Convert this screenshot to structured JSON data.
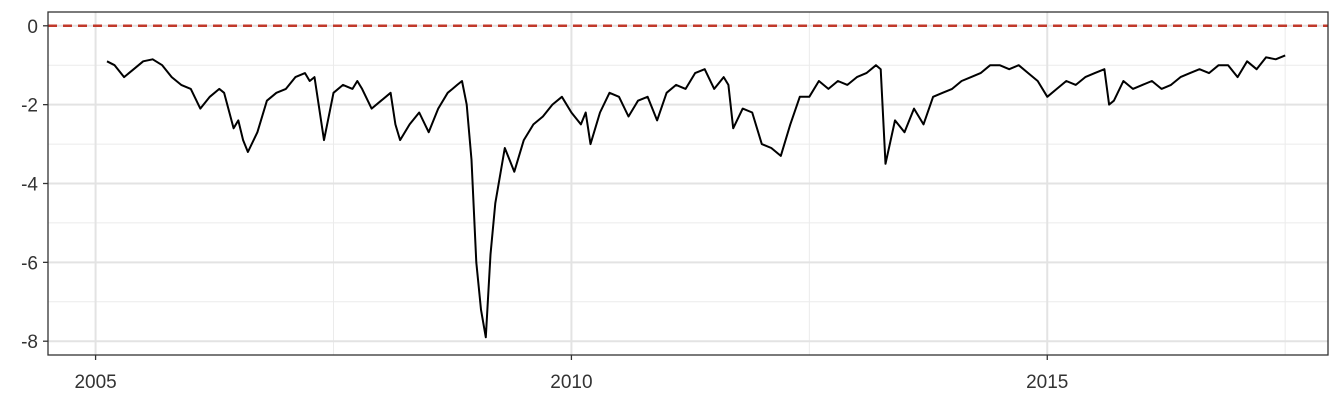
{
  "chart_data": {
    "type": "line",
    "title": "",
    "xlabel": "",
    "ylabel": "",
    "xlim": [
      2004.5,
      2017.95
    ],
    "ylim": [
      -8.35,
      0.35
    ],
    "x_ticks": [
      2005,
      2010,
      2015
    ],
    "x_tick_labels": [
      "2005",
      "2010",
      "2015"
    ],
    "y_ticks": [
      0,
      -2,
      -4,
      -6,
      -8
    ],
    "y_tick_labels": [
      "0",
      "-2",
      "-4",
      "-6",
      "-8"
    ],
    "reference_line": {
      "y": 0,
      "style": "dashed",
      "color": "#C0392B"
    },
    "grid": true,
    "legend": "none",
    "series_color": "#000000",
    "series": [
      {
        "x": [
          2005.12,
          2005.2,
          2005.3,
          2005.4,
          2005.5,
          2005.6,
          2005.7,
          2005.8,
          2005.9,
          2006.0,
          2006.1,
          2006.2,
          2006.3,
          2006.35,
          2006.45,
          2006.5,
          2006.55,
          2006.6,
          2006.7,
          2006.8,
          2006.9,
          2007.0,
          2007.1,
          2007.2,
          2007.25,
          2007.3,
          2007.4,
          2007.5,
          2007.6,
          2007.7,
          2007.75,
          2007.8,
          2007.9,
          2008.0,
          2008.1,
          2008.15,
          2008.2,
          2008.3,
          2008.4,
          2008.5,
          2008.6,
          2008.7,
          2008.75,
          2008.8,
          2008.85,
          2008.9,
          2008.95,
          2009.0,
          2009.05,
          2009.1,
          2009.15,
          2009.2,
          2009.3,
          2009.4,
          2009.5,
          2009.6,
          2009.7,
          2009.8,
          2009.9,
          2010.0,
          2010.1,
          2010.15,
          2010.2,
          2010.3,
          2010.4,
          2010.5,
          2010.6,
          2010.7,
          2010.8,
          2010.9,
          2011.0,
          2011.1,
          2011.2,
          2011.3,
          2011.4,
          2011.5,
          2011.6,
          2011.65,
          2011.7,
          2011.8,
          2011.9,
          2012.0,
          2012.1,
          2012.2,
          2012.3,
          2012.4,
          2012.5,
          2012.6,
          2012.7,
          2012.8,
          2012.9,
          2013.0,
          2013.1,
          2013.2,
          2013.25,
          2013.3,
          2013.4,
          2013.5,
          2013.6,
          2013.7,
          2013.8,
          2013.9,
          2014.0,
          2014.1,
          2014.2,
          2014.3,
          2014.4,
          2014.5,
          2014.6,
          2014.7,
          2014.8,
          2014.9,
          2015.0,
          2015.1,
          2015.2,
          2015.3,
          2015.4,
          2015.5,
          2015.6,
          2015.65,
          2015.7,
          2015.8,
          2015.9,
          2016.0,
          2016.1,
          2016.2,
          2016.3,
          2016.4,
          2016.5,
          2016.6,
          2016.7,
          2016.8,
          2016.9,
          2017.0,
          2017.1,
          2017.2,
          2017.3,
          2017.4,
          2017.5
        ],
        "values": [
          -0.9,
          -1.0,
          -1.3,
          -1.1,
          -0.9,
          -0.85,
          -1.0,
          -1.3,
          -1.5,
          -1.6,
          -2.1,
          -1.8,
          -1.6,
          -1.7,
          -2.6,
          -2.4,
          -2.9,
          -3.2,
          -2.7,
          -1.9,
          -1.7,
          -1.6,
          -1.3,
          -1.2,
          -1.4,
          -1.3,
          -2.9,
          -1.7,
          -1.5,
          -1.6,
          -1.4,
          -1.6,
          -2.1,
          -1.9,
          -1.7,
          -2.5,
          -2.9,
          -2.5,
          -2.2,
          -2.7,
          -2.1,
          -1.7,
          -1.6,
          -1.5,
          -1.4,
          -2.0,
          -3.4,
          -6.0,
          -7.2,
          -7.9,
          -5.8,
          -4.5,
          -3.1,
          -3.7,
          -2.9,
          -2.5,
          -2.3,
          -2.0,
          -1.8,
          -2.2,
          -2.5,
          -2.2,
          -3.0,
          -2.2,
          -1.7,
          -1.8,
          -2.3,
          -1.9,
          -1.8,
          -2.4,
          -1.7,
          -1.5,
          -1.6,
          -1.2,
          -1.1,
          -1.6,
          -1.3,
          -1.5,
          -2.6,
          -2.1,
          -2.2,
          -3.0,
          -3.1,
          -3.3,
          -2.5,
          -1.8,
          -1.8,
          -1.4,
          -1.6,
          -1.4,
          -1.5,
          -1.3,
          -1.2,
          -1.0,
          -1.1,
          -3.5,
          -2.4,
          -2.7,
          -2.1,
          -2.5,
          -1.8,
          -1.7,
          -1.6,
          -1.4,
          -1.3,
          -1.2,
          -1.0,
          -1.0,
          -1.1,
          -1.0,
          -1.2,
          -1.4,
          -1.8,
          -1.6,
          -1.4,
          -1.5,
          -1.3,
          -1.2,
          -1.1,
          -2.0,
          -1.9,
          -1.4,
          -1.6,
          -1.5,
          -1.4,
          -1.6,
          -1.5,
          -1.3,
          -1.2,
          -1.1,
          -1.2,
          -1.0,
          -1.0,
          -1.3,
          -0.9,
          -1.1,
          -0.8,
          -0.85,
          -0.75
        ]
      }
    ]
  }
}
